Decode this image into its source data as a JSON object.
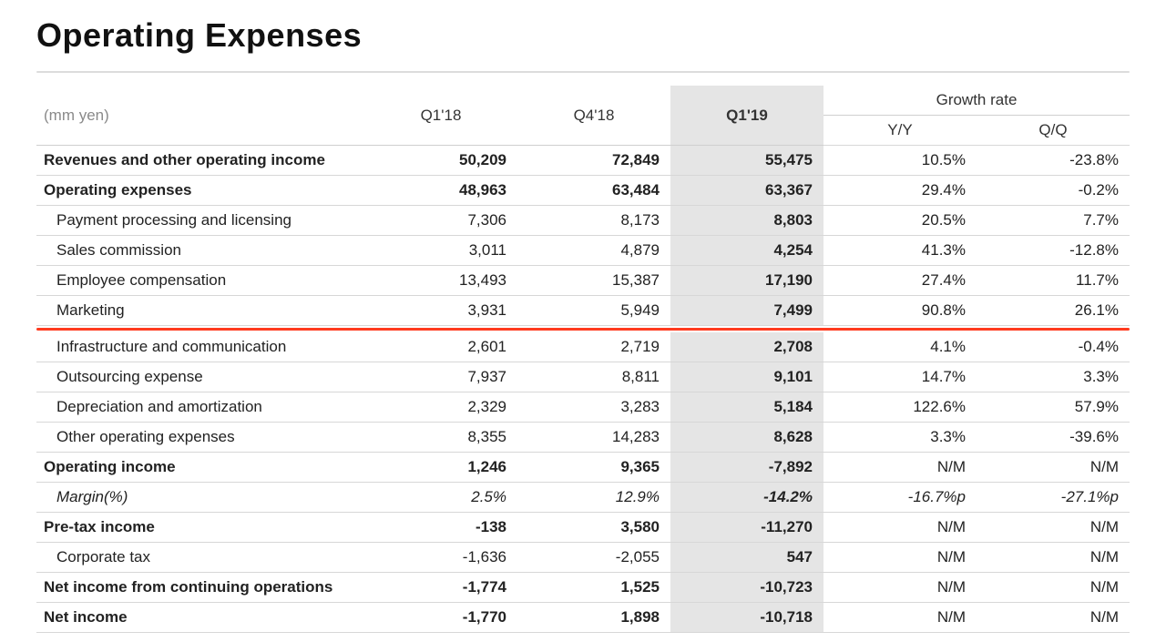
{
  "title": "Operating Expenses",
  "unit_label": "(mm yen)",
  "columns": {
    "q1_18": "Q1'18",
    "q4_18": "Q4'18",
    "q1_19": "Q1'19",
    "growth_header": "Growth rate",
    "yy": "Y/Y",
    "qq": "Q/Q"
  },
  "colors": {
    "accent_green": "#17a22e",
    "highlight_bg": "#e5e5e5",
    "redline": "#ff3b1f",
    "divider": "#d7d7d7",
    "muted": "#8a8a8a",
    "text": "#222222"
  },
  "rows": [
    {
      "id": "revenues",
      "label": "Revenues and other operating income",
      "style": "green bold",
      "q1_18": "50,209",
      "q4_18": "72,849",
      "q1_19": "55,475",
      "yy": "10.5%",
      "qq": "-23.8%"
    },
    {
      "id": "opex",
      "label": "Operating expenses",
      "style": "green bold",
      "q1_18": "48,963",
      "q4_18": "63,484",
      "q1_19": "63,367",
      "yy": "29.4%",
      "qq": "-0.2%"
    },
    {
      "id": "payment",
      "label": "Payment processing and licensing",
      "style": "sub",
      "q1_18": "7,306",
      "q4_18": "8,173",
      "q1_19": "8,803",
      "yy": "20.5%",
      "qq": "7.7%"
    },
    {
      "id": "sales_comm",
      "label": "Sales commission",
      "style": "sub",
      "q1_18": "3,011",
      "q4_18": "4,879",
      "q1_19": "4,254",
      "yy": "41.3%",
      "qq": "-12.8%"
    },
    {
      "id": "emp_comp",
      "label": "Employee compensation",
      "style": "sub",
      "q1_18": "13,493",
      "q4_18": "15,387",
      "q1_19": "17,190",
      "yy": "27.4%",
      "qq": "11.7%"
    },
    {
      "id": "marketing",
      "label": "Marketing",
      "style": "sub redafter",
      "q1_18": "3,931",
      "q4_18": "5,949",
      "q1_19": "7,499",
      "yy": "90.8%",
      "qq": "26.1%"
    },
    {
      "id": "infra",
      "label": "Infrastructure and communication",
      "style": "sub",
      "q1_18": "2,601",
      "q4_18": "2,719",
      "q1_19": "2,708",
      "yy": "4.1%",
      "qq": "-0.4%"
    },
    {
      "id": "outsourcing",
      "label": "Outsourcing expense",
      "style": "sub",
      "q1_18": "7,937",
      "q4_18": "8,811",
      "q1_19": "9,101",
      "yy": "14.7%",
      "qq": "3.3%"
    },
    {
      "id": "dep_amort",
      "label": "Depreciation and amortization",
      "style": "sub",
      "q1_18": "2,329",
      "q4_18": "3,283",
      "q1_19": "5,184",
      "yy": "122.6%",
      "qq": "57.9%"
    },
    {
      "id": "other_opex",
      "label": "Other operating expenses",
      "style": "sub",
      "q1_18": "8,355",
      "q4_18": "14,283",
      "q1_19": "8,628",
      "yy": "3.3%",
      "qq": "-39.6%"
    },
    {
      "id": "op_income",
      "label": "Operating income",
      "style": "green bold",
      "q1_18": "1,246",
      "q4_18": "9,365",
      "q1_19": "-7,892",
      "yy": "N/M",
      "qq": "N/M"
    },
    {
      "id": "margin",
      "label": "Margin(%)",
      "style": "sub italic",
      "q1_18": "2.5%",
      "q4_18": "12.9%",
      "q1_19": "-14.2%",
      "yy": "-16.7%p",
      "qq": "-27.1%p"
    },
    {
      "id": "pretax",
      "label": "Pre-tax income",
      "style": "green bold",
      "q1_18": "-138",
      "q4_18": "3,580",
      "q1_19": "-11,270",
      "yy": "N/M",
      "qq": "N/M"
    },
    {
      "id": "corp_tax",
      "label": "Corporate tax",
      "style": "sub",
      "q1_18": "-1,636",
      "q4_18": "-2,055",
      "q1_19": "547",
      "yy": "N/M",
      "qq": "N/M"
    },
    {
      "id": "net_cont",
      "label": "Net income from continuing operations",
      "style": "green bold",
      "q1_18": "-1,774",
      "q4_18": "1,525",
      "q1_19": "-10,723",
      "yy": "N/M",
      "qq": "N/M"
    },
    {
      "id": "net_income",
      "label": "Net income",
      "style": "green bold",
      "q1_18": "-1,770",
      "q4_18": "1,898",
      "q1_19": "-10,718",
      "yy": "N/M",
      "qq": "N/M"
    }
  ]
}
